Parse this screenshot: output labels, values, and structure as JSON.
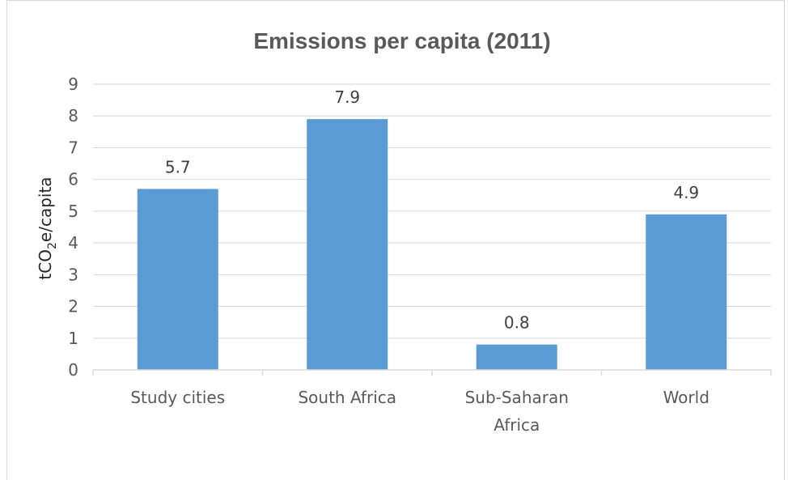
{
  "chart_data": {
    "type": "bar",
    "title": "Emissions per capita (2011)",
    "ylabel_main": "tCO",
    "ylabel_sub": "2",
    "ylabel_rest": "e/capita",
    "xlabel": "",
    "ylim": [
      0,
      9
    ],
    "yticks": [
      0,
      1,
      2,
      3,
      4,
      5,
      6,
      7,
      8,
      9
    ],
    "categories": [
      [
        "Study cities"
      ],
      [
        "South Africa"
      ],
      [
        "Sub-Saharan",
        "Africa"
      ],
      [
        "World"
      ]
    ],
    "values": [
      5.7,
      7.9,
      0.8,
      4.9
    ],
    "data_labels": [
      "5.7",
      "7.9",
      "0.8",
      "4.9"
    ],
    "grid": true,
    "bar_color": "#5b9bd5",
    "grid_color": "#d9d9d9"
  }
}
